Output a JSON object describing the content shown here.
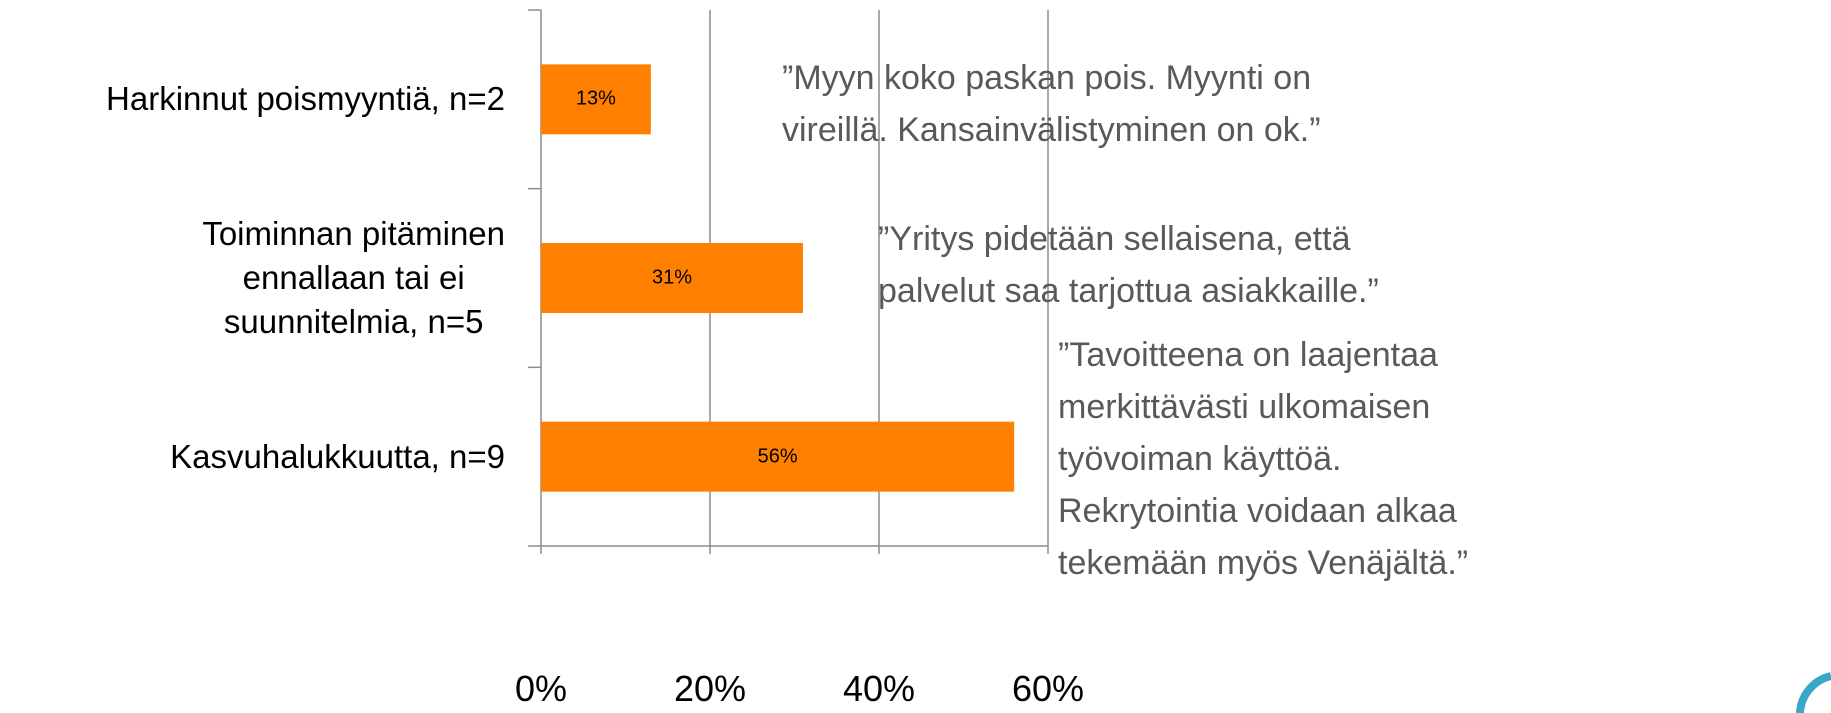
{
  "chart_data": {
    "type": "barh",
    "categories": [
      "Harkinnut poismyyntiä, n=2",
      "Toiminnan pitäminen\nennallaan tai ei\nsuunnitelmia, n=5",
      "Kasvuhalukkuutta, n=9"
    ],
    "values": [
      13,
      31,
      56
    ],
    "value_labels": [
      "13%",
      "31%",
      "56%"
    ],
    "color": "#ff8000",
    "xlim": [
      0,
      60
    ],
    "xticks": [
      {
        "value": 0,
        "label": "0%"
      },
      {
        "value": 20,
        "label": "20%"
      },
      {
        "value": 40,
        "label": "40%"
      },
      {
        "value": 60,
        "label": "60%"
      }
    ],
    "grid": true,
    "annotations": [
      "”Myyn koko paskan pois. Myynti on\nvireillä. Kansainvälistyminen on ok.”",
      "”Yritys pidetään sellaisena, että\npalvelut saa tarjottua asiakkaille.”",
      "”Tavoitteena on laajentaa\nmerkittävästi ulkomaisen\ntyövoiman käyttöä.\nRekrytointia voidaan alkaa\ntekemään myös Venäjältä.”"
    ]
  }
}
